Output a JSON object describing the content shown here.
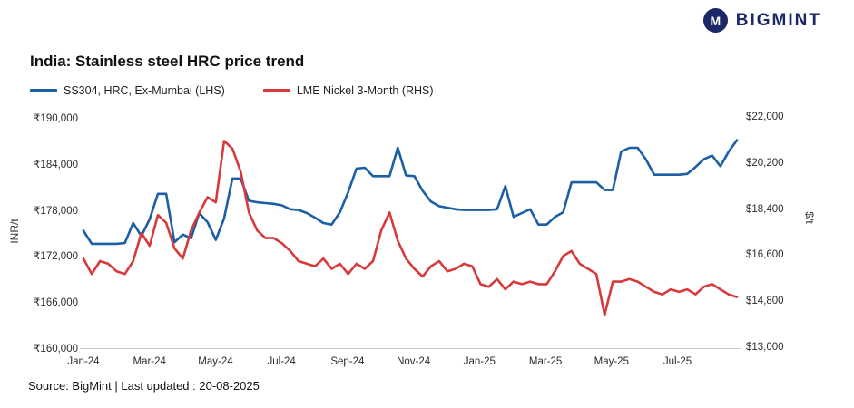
{
  "logo": {
    "text": "BIGMINT",
    "icon_letter": "M",
    "brand_color": "#1b2766"
  },
  "title": "India: Stainless steel HRC price trend",
  "legend": [
    {
      "label": "SS304, HRC, Ex-Mumbai (LHS)"
    },
    {
      "label": "LME Nickel 3-Month (RHS)"
    }
  ],
  "source": "Source: BigMint | Last updated : 20-08-2025",
  "chart_data": {
    "type": "line",
    "title": "India: Stainless steel HRC price trend",
    "grid": false,
    "legend_position": "top-left",
    "xlabel": "",
    "ylabel_left": "INR/t",
    "ylabel_right": "$/t",
    "x_ticks": [
      "Jan-24",
      "Mar-24",
      "May-24",
      "Jul-24",
      "Sep-24",
      "Nov-24",
      "Jan-25",
      "Mar-25",
      "May-25",
      "Jul-25"
    ],
    "x_range_months": [
      "Jan-24",
      "Aug-25"
    ],
    "y_left": {
      "min": 160000,
      "max": 190000,
      "ticks": [
        "₹190,000",
        "₹184,000",
        "₹178,000",
        "₹172,000",
        "₹166,000",
        "₹160,000"
      ]
    },
    "y_right": {
      "min": 13000,
      "max": 22000,
      "ticks": [
        "$22,000",
        "$20,200",
        "$18,400",
        "$16,600",
        "$14,800",
        "$13,000"
      ]
    },
    "series": [
      {
        "name": "SS304, HRC, Ex-Mumbai (LHS)",
        "axis": "left",
        "color": "#1b5fa5",
        "unit": "INR/t",
        "values": [
          175300,
          173600,
          173600,
          173600,
          173600,
          173700,
          176300,
          174600,
          176800,
          180100,
          180100,
          173800,
          174800,
          174300,
          177600,
          176400,
          174100,
          176900,
          182100,
          182100,
          179200,
          179000,
          178900,
          178800,
          178600,
          178100,
          178000,
          177600,
          177000,
          176300,
          176100,
          177700,
          180300,
          183400,
          183500,
          182400,
          182400,
          182400,
          186100,
          182500,
          182400,
          180500,
          179100,
          178500,
          178300,
          178100,
          178000,
          178000,
          178000,
          178000,
          178100,
          181100,
          177100,
          177600,
          178100,
          176100,
          176100,
          177100,
          177700,
          181600,
          181600,
          181600,
          181600,
          180600,
          180600,
          185600,
          186100,
          186100,
          184600,
          182600,
          182600,
          182600,
          182600,
          182700,
          183600,
          184600,
          185100,
          183700,
          185600,
          187100
        ]
      },
      {
        "name": "LME Nickel 3-Month (RHS)",
        "axis": "right",
        "color": "#d8393b",
        "unit": "$/t",
        "values": [
          16500,
          15900,
          16400,
          16300,
          16000,
          15900,
          16400,
          17500,
          17000,
          18200,
          17900,
          16900,
          16500,
          17600,
          18300,
          18900,
          18700,
          21100,
          20800,
          19900,
          18300,
          17600,
          17300,
          17300,
          17100,
          16800,
          16400,
          16300,
          16200,
          16500,
          16100,
          16300,
          15900,
          16300,
          16100,
          16400,
          17600,
          18300,
          17200,
          16500,
          16100,
          15800,
          16200,
          16400,
          16000,
          16100,
          16300,
          16200,
          15500,
          15400,
          15700,
          15300,
          15600,
          15500,
          15600,
          15500,
          15500,
          16000,
          16600,
          16800,
          16300,
          16100,
          15900,
          14300,
          15600,
          15600,
          15700,
          15600,
          15400,
          15200,
          15100,
          15300,
          15200,
          15300,
          15100,
          15400,
          15500,
          15300,
          15100,
          15000
        ]
      }
    ]
  }
}
